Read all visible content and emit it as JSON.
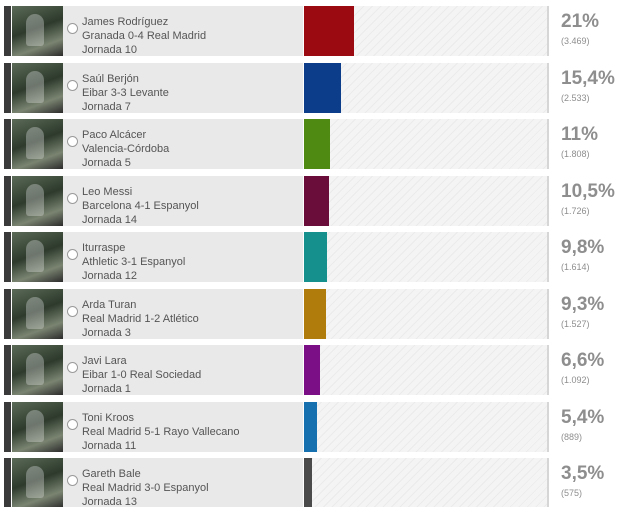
{
  "poll": {
    "options": [
      {
        "name": "James Rodríguez",
        "match": "Granada 0-4 Real Madrid",
        "jornada": "Jornada 10",
        "percent_label": "21%",
        "votes_label": "(3.469)",
        "share": 0.21,
        "color": "#9b0a10"
      },
      {
        "name": "Saúl Berjón",
        "match": "Eibar 3-3 Levante",
        "jornada": "Jornada 7",
        "percent_label": "15,4%",
        "votes_label": "(2.533)",
        "share": 0.154,
        "color": "#0c3d8a"
      },
      {
        "name": "Paco Alcácer",
        "match": "Valencia-Córdoba",
        "jornada": "Jornada 5",
        "percent_label": "11%",
        "votes_label": "(1.808)",
        "share": 0.11,
        "color": "#4f8a12"
      },
      {
        "name": "Leo Messi",
        "match": "Barcelona 4-1 Espanyol",
        "jornada": "Jornada 14",
        "percent_label": "10,5%",
        "votes_label": "(1.726)",
        "share": 0.105,
        "color": "#6a0d3a"
      },
      {
        "name": "Iturraspe",
        "match": "Athletic 3-1 Espanyol",
        "jornada": "Jornada 12",
        "percent_label": "9,8%",
        "votes_label": "(1.614)",
        "share": 0.098,
        "color": "#15908c"
      },
      {
        "name": "Arda Turan",
        "match": "Real Madrid 1-2 Atlético",
        "jornada": "Jornada 3",
        "percent_label": "9,3%",
        "votes_label": "(1.527)",
        "share": 0.093,
        "color": "#b07c0c"
      },
      {
        "name": "Javi Lara",
        "match": "Eibar 1-0 Real Sociedad",
        "jornada": "Jornada 1",
        "percent_label": "6,6%",
        "votes_label": "(1.092)",
        "share": 0.066,
        "color": "#7b0f85"
      },
      {
        "name": "Toni Kroos",
        "match": "Real Madrid 5-1 Rayo Vallecano",
        "jornada": "Jornada 11",
        "percent_label": "5,4%",
        "votes_label": "(889)",
        "share": 0.054,
        "color": "#1670b0"
      },
      {
        "name": "Gareth Bale",
        "match": "Real Madrid 3-0 Espanyol",
        "jornada": "Jornada 13",
        "percent_label": "3,5%",
        "votes_label": "(575)",
        "share": 0.035,
        "color": "#4a4a4a"
      }
    ]
  }
}
